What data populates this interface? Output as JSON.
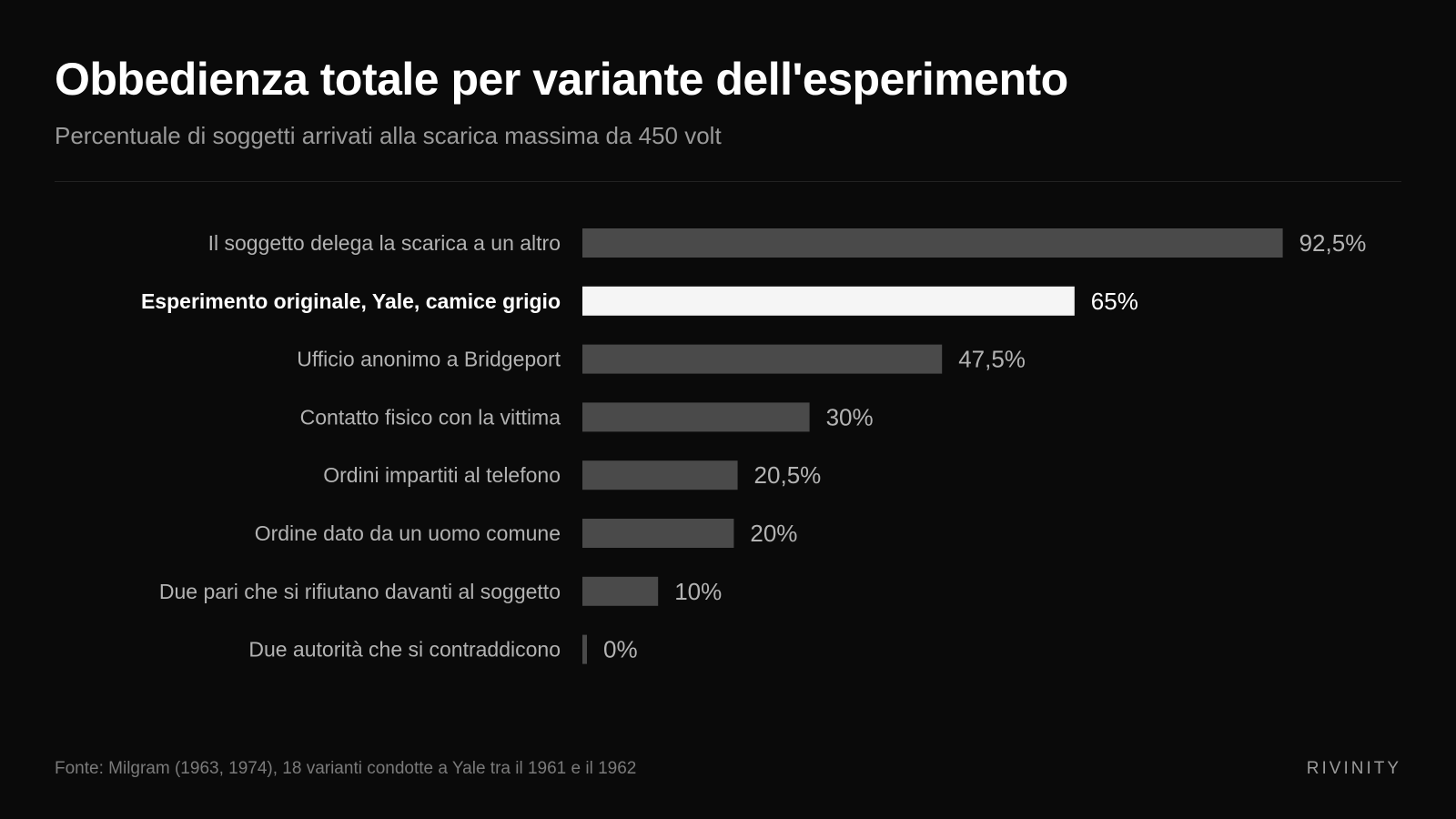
{
  "header": {
    "title": "Obbedienza totale per variante dell'esperimento",
    "subtitle": "Percentuale di soggetti arrivati alla scarica massima da 450 volt"
  },
  "chart_data": {
    "type": "bar",
    "orientation": "horizontal",
    "categories": [
      "Il soggetto delega la scarica a un altro",
      "Esperimento originale, Yale, camice grigio",
      "Ufficio anonimo a Bridgeport",
      "Contatto fisico con la vittima",
      "Ordini impartiti al telefono",
      "Ordine dato da un uomo comune",
      "Due pari che si rifiutano davanti al soggetto",
      "Due autorità che si contraddicono"
    ],
    "values": [
      92.5,
      65,
      47.5,
      30,
      20.5,
      20,
      10,
      0
    ],
    "value_labels": [
      "92,5%",
      "65%",
      "47,5%",
      "30%",
      "20,5%",
      "20%",
      "10%",
      "0%"
    ],
    "highlight_index": 1,
    "xlim": [
      0,
      100
    ],
    "grid": false,
    "colors": {
      "bar": "#4a4a4a",
      "highlight_bar": "#f5f5f5",
      "label": "#b3b3b3",
      "highlight_label": "#ffffff",
      "value": "#b3b3b3",
      "highlight_value": "#ffffff"
    }
  },
  "footer": {
    "source": "Fonte: Milgram (1963, 1974), 18 varianti condotte a Yale tra il 1961 e il 1962",
    "brand": "RIVINITY"
  }
}
